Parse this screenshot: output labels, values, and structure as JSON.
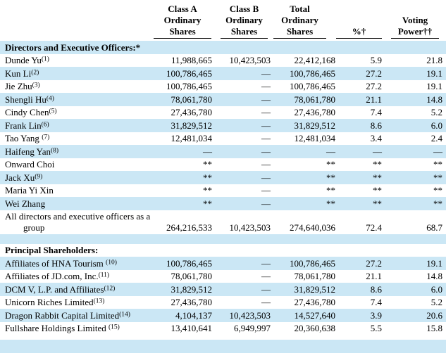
{
  "table": {
    "shaded_row_color": "#cbe7f5",
    "rule_color": "#000000",
    "columns": [
      {
        "key": "name",
        "header_lines": []
      },
      {
        "key": "class_a",
        "header_lines": [
          "Class A",
          "Ordinary",
          "Shares"
        ]
      },
      {
        "key": "class_b",
        "header_lines": [
          "Class B",
          "Ordinary",
          "Shares"
        ]
      },
      {
        "key": "total",
        "header_lines": [
          "Total",
          "Ordinary",
          "Shares"
        ]
      },
      {
        "key": "pct",
        "header_lines": [
          "%†"
        ]
      },
      {
        "key": "voting",
        "header_lines": [
          "Voting",
          "Power††"
        ]
      }
    ],
    "rows": [
      {
        "type": "section",
        "shaded": true,
        "name": "Directors and Executive Officers:*"
      },
      {
        "type": "data",
        "shaded": false,
        "name": "Dunde Yu",
        "sup": "(1)",
        "class_a": "11,988,665",
        "class_b": "10,423,503",
        "total": "22,412,168",
        "pct": "5.9",
        "voting": "21.8"
      },
      {
        "type": "data",
        "shaded": true,
        "name": "Kun Li",
        "sup": "(2)",
        "class_a": "100,786,465",
        "class_b": "—",
        "total": "100,786,465",
        "pct": "27.2",
        "voting": "19.1"
      },
      {
        "type": "data",
        "shaded": false,
        "name": "Jie Zhu",
        "sup": "(3)",
        "class_a": "100,786,465",
        "class_b": "—",
        "total": "100,786,465",
        "pct": "27.2",
        "voting": "19.1"
      },
      {
        "type": "data",
        "shaded": true,
        "name": "Shengli Hu",
        "sup": "(4)",
        "class_a": "78,061,780",
        "class_b": "—",
        "total": "78,061,780",
        "pct": "21.1",
        "voting": "14.8"
      },
      {
        "type": "data",
        "shaded": false,
        "name": "Cindy Chen",
        "sup": "(5)",
        "class_a": "27,436,780",
        "class_b": "—",
        "total": "27,436,780",
        "pct": "7.4",
        "voting": "5.2"
      },
      {
        "type": "data",
        "shaded": true,
        "name": "Frank Lin",
        "sup": "(6)",
        "class_a": "31,829,512",
        "class_b": "—",
        "total": "31,829,512",
        "pct": "8.6",
        "voting": "6.0"
      },
      {
        "type": "data",
        "shaded": false,
        "name": "Tao Yang ",
        "sup": "(7)",
        "class_a": "12,481,034",
        "class_b": "—",
        "total": "12,481,034",
        "pct": "3.4",
        "voting": "2.4"
      },
      {
        "type": "data",
        "shaded": true,
        "name": "Haifeng Yan",
        "sup": "(8)",
        "class_a": "—",
        "class_b": "—",
        "total": "—",
        "pct": "—",
        "voting": "—"
      },
      {
        "type": "data",
        "shaded": false,
        "name": "Onward Choi",
        "class_a": "**",
        "class_b": "—",
        "total": "**",
        "pct": "**",
        "voting": "**"
      },
      {
        "type": "data",
        "shaded": true,
        "name": "Jack Xu",
        "sup": "(9)",
        "class_a": "**",
        "class_b": "—",
        "total": "**",
        "pct": "**",
        "voting": "**"
      },
      {
        "type": "data",
        "shaded": false,
        "name": "Maria Yi Xin",
        "class_a": "**",
        "class_b": "—",
        "total": "**",
        "pct": "**",
        "voting": "**"
      },
      {
        "type": "data",
        "shaded": true,
        "name": "Wei Zhang",
        "class_a": "**",
        "class_b": "—",
        "total": "**",
        "pct": "**",
        "voting": "**"
      },
      {
        "type": "data",
        "shaded": false,
        "name_lines": [
          "All directors and executive officers as a",
          "group"
        ],
        "class_a": "264,216,533",
        "class_b": "10,423,503",
        "total": "274,640,036",
        "pct": "72.4",
        "voting": "68.7"
      },
      {
        "type": "blank",
        "shaded": true
      },
      {
        "type": "section",
        "shaded": false,
        "name": "Principal Shareholders:"
      },
      {
        "type": "data",
        "shaded": true,
        "name": "Affiliates of HNA Tourism ",
        "sup": "(10)",
        "class_a": "100,786,465",
        "class_b": "—",
        "total": "100,786,465",
        "pct": "27.2",
        "voting": "19.1"
      },
      {
        "type": "data",
        "shaded": false,
        "name": "Affiliates of JD.com, Inc.",
        "sup": "(11)",
        "class_a": "78,061,780",
        "class_b": "—",
        "total": "78,061,780",
        "pct": "21.1",
        "voting": "14.8"
      },
      {
        "type": "data",
        "shaded": true,
        "name": "DCM V, L.P. and Affiliates",
        "sup": "(12)",
        "class_a": "31,829,512",
        "class_b": "—",
        "total": "31,829,512",
        "pct": "8.6",
        "voting": "6.0"
      },
      {
        "type": "data",
        "shaded": false,
        "name": "Unicorn Riches Limited",
        "sup": "(13)",
        "class_a": "27,436,780",
        "class_b": "—",
        "total": "27,436,780",
        "pct": "7.4",
        "voting": "5.2"
      },
      {
        "type": "data",
        "shaded": true,
        "name": "Dragon Rabbit Capital Limited",
        "sup": "(14)",
        "class_a": "4,104,137",
        "class_b": "10,423,503",
        "total": "14,527,640",
        "pct": "3.9",
        "voting": "20.6"
      },
      {
        "type": "data",
        "shaded": false,
        "name": "Fullshare Holdings Limited ",
        "sup": "(15)",
        "class_a": "13,410,641",
        "class_b": "6,949,997",
        "total": "20,360,638",
        "pct": "5.5",
        "voting": "15.8"
      },
      {
        "type": "spacer",
        "shaded": false
      },
      {
        "type": "blank",
        "shaded": true
      }
    ]
  }
}
